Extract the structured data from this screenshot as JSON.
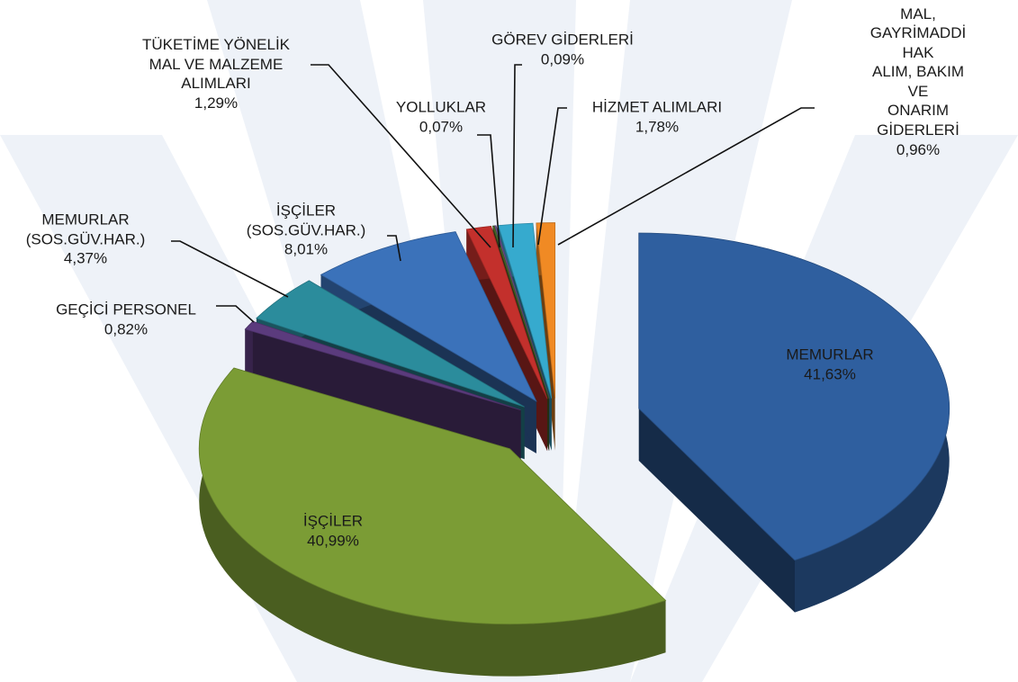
{
  "chart_data": {
    "type": "pie",
    "categories": [
      "MEMURLAR",
      "İŞÇİLER",
      "GEÇİCİ PERSONEL",
      "MEMURLAR\n(SOS.GÜV.HAR.)",
      "İŞÇİLER\n(SOS.GÜV.HAR.)",
      "TÜKETİME YÖNELİK\nMAL VE MALZEME\nALIMLARI",
      "YOLLUKLAR",
      "GÖREV GİDERLERİ",
      "HİZMET ALIMLARI",
      "MENKUL MAL,\nGAYRİMADDİ HAK\nALIM, BAKIM VE\nONARIM GİDERLERİ"
    ],
    "values": [
      41.63,
      40.99,
      0.82,
      4.37,
      8.01,
      1.29,
      0.07,
      0.09,
      1.78,
      0.96
    ],
    "value_labels": [
      "41,63%",
      "40,99%",
      "0,82%",
      "4,37%",
      "8,01%",
      "1,29%",
      "0,07%",
      "0,09%",
      "1,78%",
      "0,96%"
    ],
    "colors": [
      "#2f5f9f",
      "#7b9c35",
      "#5b3b7d",
      "#2b8c9c",
      "#3b72ba",
      "#c3302c",
      "#4d6d2b",
      "#6b4b8b",
      "#36aace",
      "#f08a24"
    ]
  }
}
